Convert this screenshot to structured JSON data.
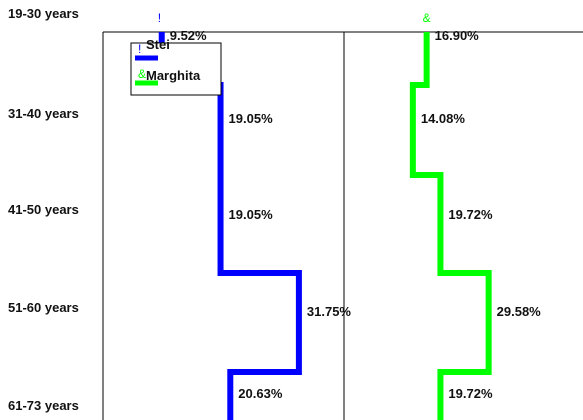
{
  "chart_data": {
    "type": "line",
    "categories": [
      "19-30 years",
      "31-40 years",
      "41-50 years",
      "51-60 years",
      "61-73 years"
    ],
    "series": [
      {
        "name": "Stei",
        "marker": "!",
        "color": "#0000ff",
        "values": [
          9.52,
          19.05,
          19.05,
          31.75,
          20.63
        ],
        "labels": [
          "9.52%",
          "19.05%",
          "19.05%",
          "31.75%",
          "20.63%"
        ]
      },
      {
        "name": "Marghita",
        "marker": "&",
        "color": "#00ff00",
        "values": [
          16.9,
          14.08,
          19.72,
          29.58,
          19.72
        ],
        "labels": [
          "16.90%",
          "14.08%",
          "19.72%",
          "29.58%",
          "19.72%"
        ]
      }
    ],
    "legend": "top-left",
    "grid": false
  }
}
